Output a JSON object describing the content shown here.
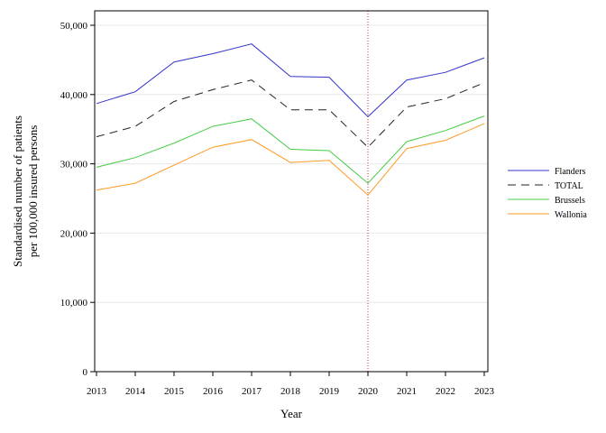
{
  "chart_data": {
    "type": "line",
    "xlabel": "Year",
    "ylabel_lines": [
      "Standardised number of patients",
      "per 100,000 insured persons"
    ],
    "x": [
      2013,
      2014,
      2015,
      2016,
      2017,
      2018,
      2019,
      2020,
      2021,
      2022,
      2023
    ],
    "x_tick_labels": [
      "2013",
      "2014",
      "2015",
      "2016",
      "2017",
      "2018",
      "2019",
      "2020",
      "2021",
      "2022",
      "2023"
    ],
    "ylim": [
      0,
      50000
    ],
    "y_ticks": [
      0,
      10000,
      20000,
      30000,
      40000,
      50000
    ],
    "y_tick_labels": [
      "0",
      "10,000",
      "20,000",
      "30,000",
      "40,000",
      "50,000"
    ],
    "grid": "horizontal",
    "legend_position": "right",
    "reference_line": {
      "x": 2020,
      "color": "#cc3333",
      "style": "dotted"
    },
    "series": [
      {
        "name": "Flanders",
        "color": "#3333cc",
        "dash": "solid",
        "values": [
          38700,
          40400,
          44700,
          45900,
          47300,
          42600,
          42500,
          36800,
          42100,
          43200,
          45300
        ]
      },
      {
        "name": "TOTAL",
        "color": "#222222",
        "dash": "dashed",
        "values": [
          33900,
          35400,
          39000,
          40700,
          42100,
          37800,
          37800,
          32400,
          38200,
          39400,
          41700
        ]
      },
      {
        "name": "Brussels",
        "color": "#44cc44",
        "dash": "solid",
        "values": [
          29500,
          30900,
          33000,
          35400,
          36500,
          32100,
          31900,
          27200,
          33200,
          34800,
          36900
        ]
      },
      {
        "name": "Wallonia",
        "color": "#ff9922",
        "dash": "solid",
        "values": [
          26200,
          27200,
          29800,
          32400,
          33500,
          30200,
          30500,
          25500,
          32200,
          33400,
          35800
        ]
      }
    ]
  }
}
